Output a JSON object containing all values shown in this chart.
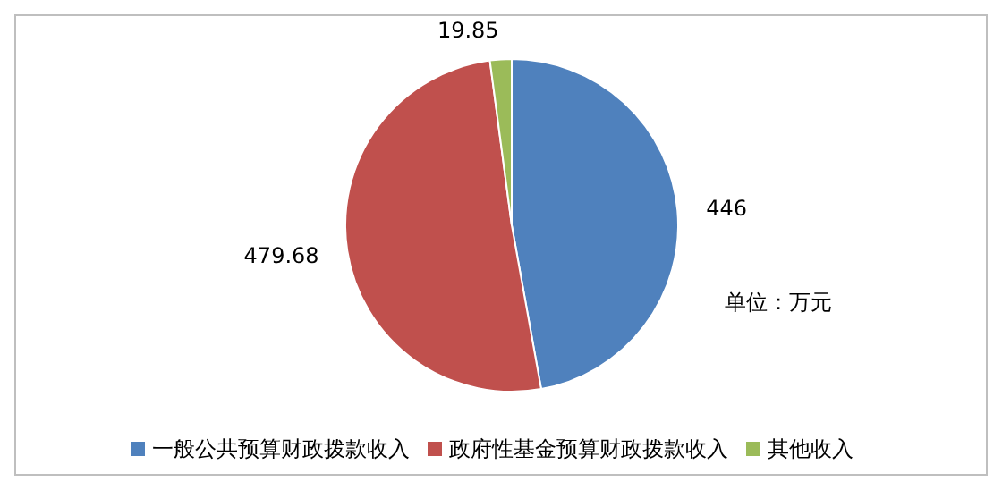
{
  "chart_data": {
    "type": "pie",
    "categories": [
      "一般公共预算财政拨款收入",
      "政府性基金预算财政拨款收入",
      "其他收入"
    ],
    "values": [
      446,
      479.68,
      19.85
    ],
    "colors": [
      "#4f81bd",
      "#c0504d",
      "#9bbb59"
    ],
    "data_labels": true,
    "legend": "bottom",
    "annotations": [
      "单位：万元"
    ]
  }
}
